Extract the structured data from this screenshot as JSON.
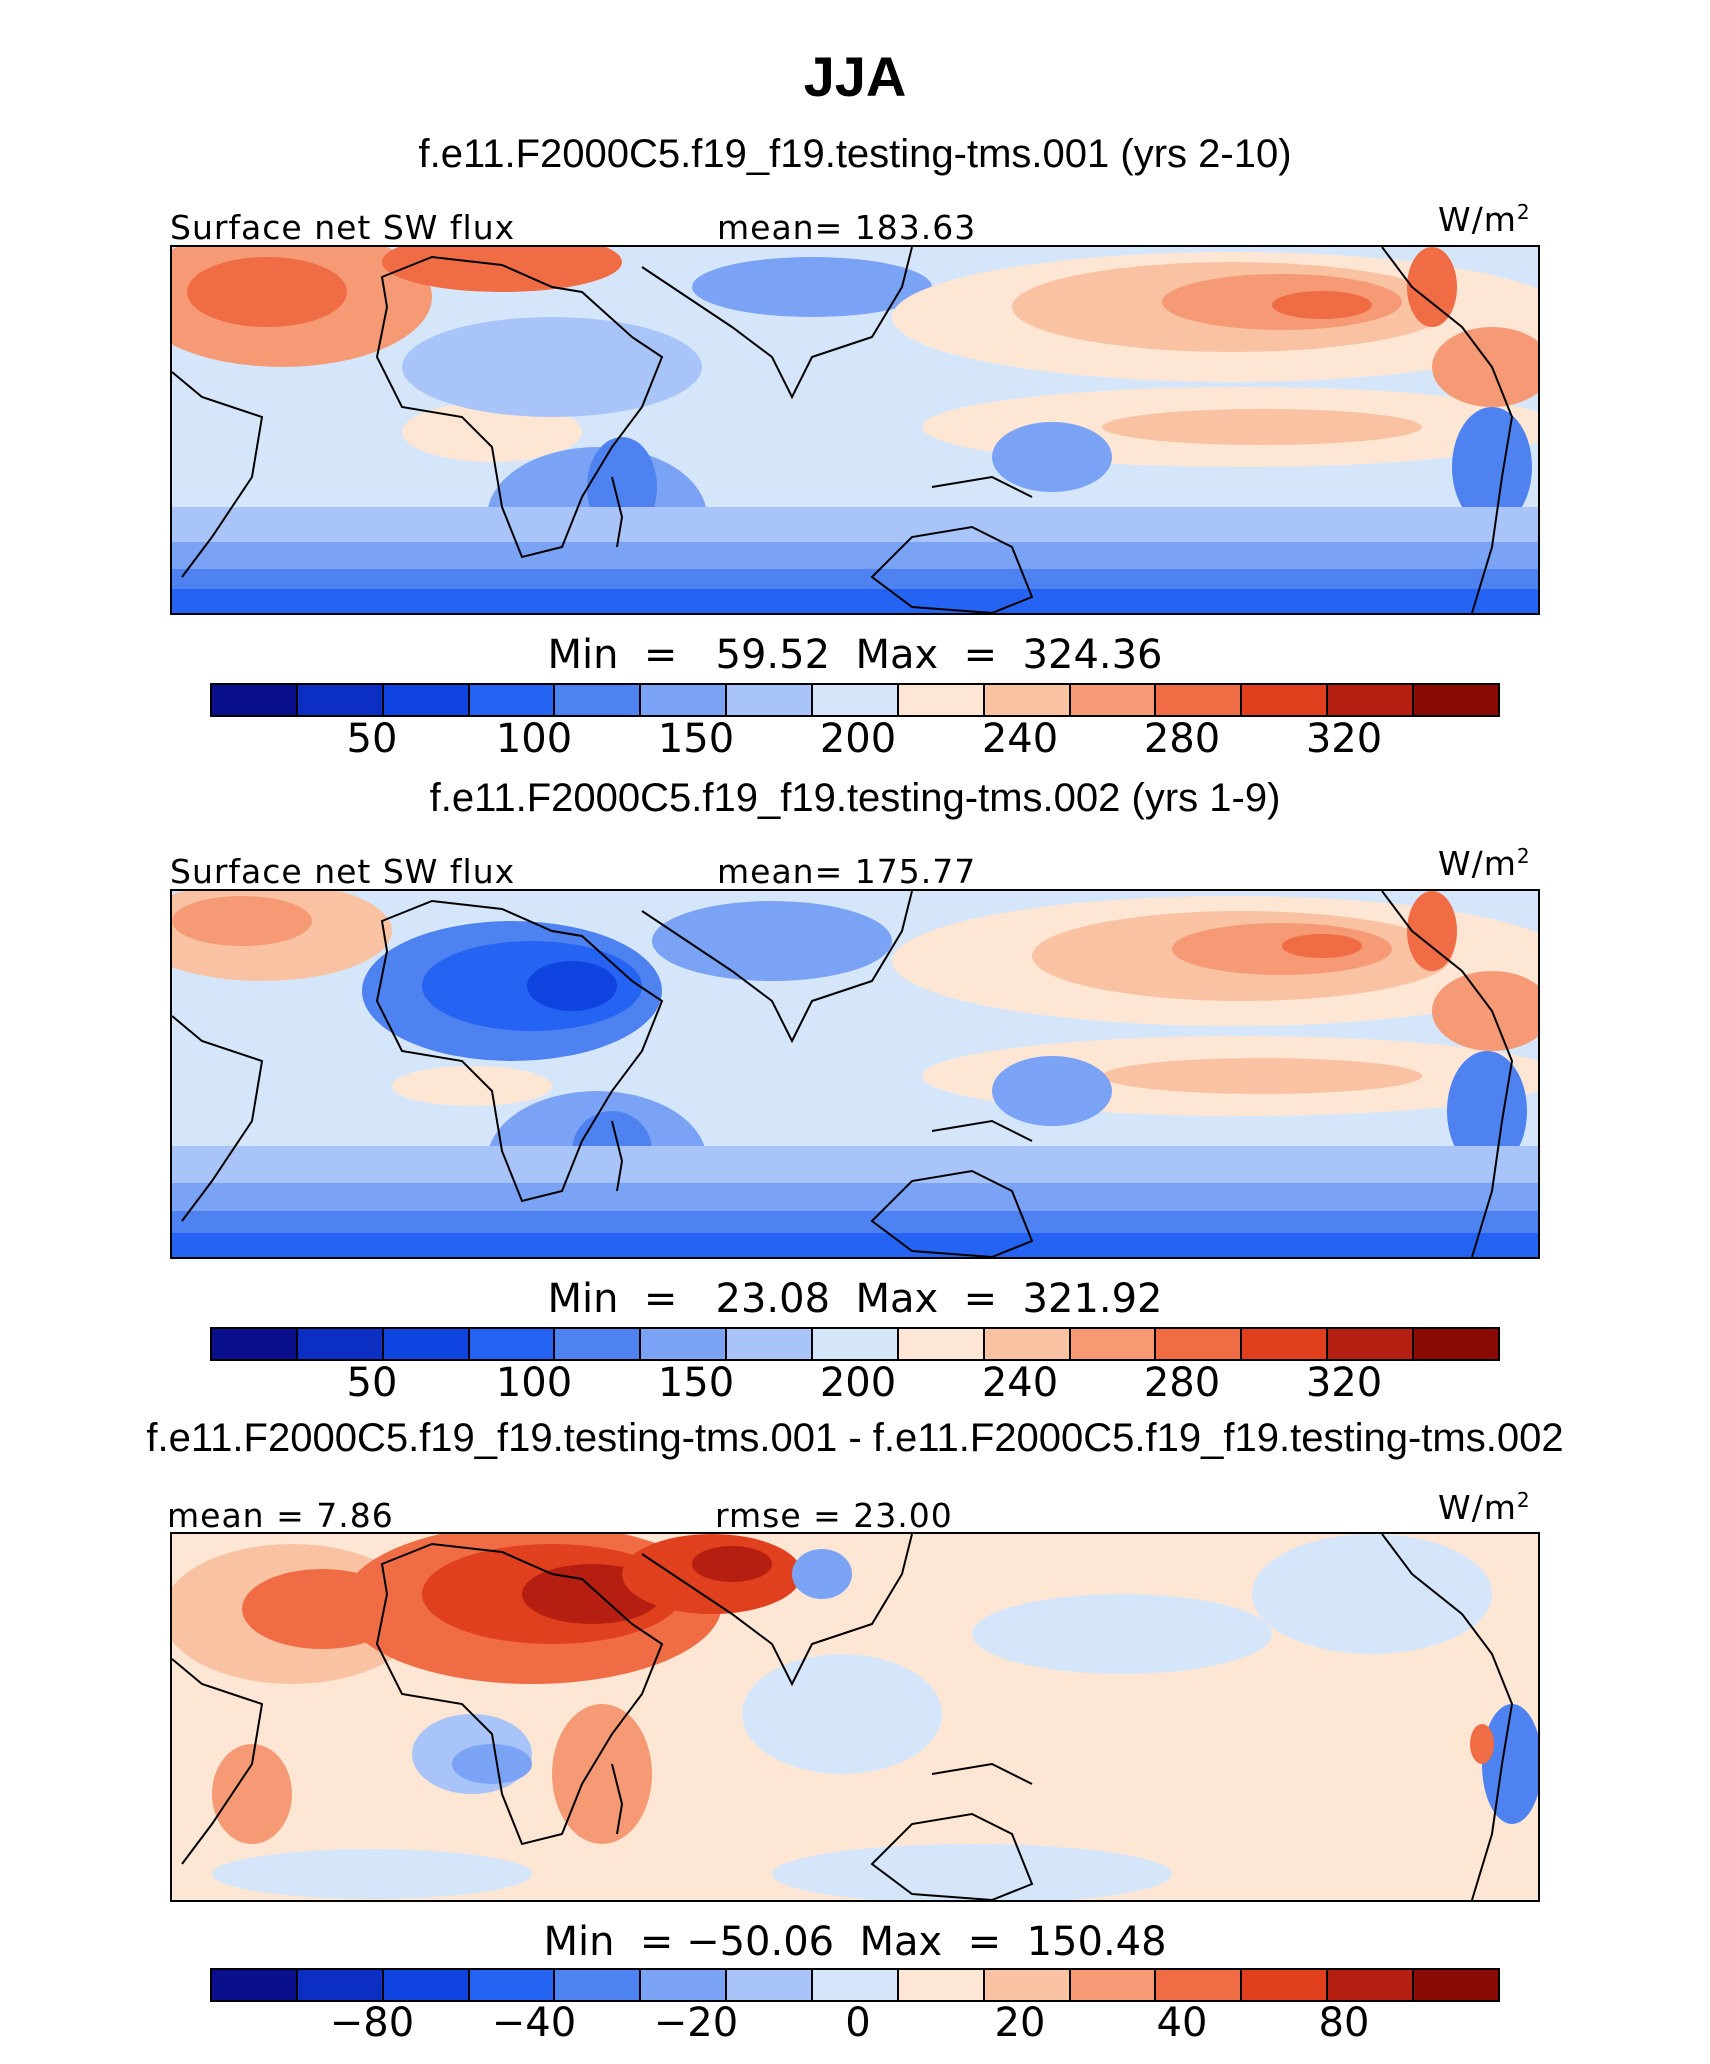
{
  "title": "JJA",
  "colors": {
    "ramp": [
      "#0a0f8c",
      "#0a2fc2",
      "#0f44e0",
      "#2563f2",
      "#4d82f0",
      "#7aa2f5",
      "#a9c4f8",
      "#d6e6fa",
      "#fde6d4",
      "#f9c3a3",
      "#f59a74",
      "#f06c45",
      "#e0401e",
      "#b51e10",
      "#8a0a05"
    ],
    "land_outline": "#000000"
  },
  "panels": [
    {
      "case_title": "f.e11.F2000C5.f19_f19.testing-tms.001 (yrs 2-10)",
      "left_label": "Surface net SW flux",
      "center_label": "mean=  183.63",
      "units": "W/m",
      "units_sup": "2",
      "minmax": "Min  =   59.52  Max  =  324.36",
      "ticks": [
        "50",
        "100",
        "150",
        "200",
        "240",
        "280",
        "320"
      ]
    },
    {
      "case_title": "f.e11.F2000C5.f19_f19.testing-tms.002 (yrs 1-9)",
      "left_label": "Surface net SW flux",
      "center_label": "mean=  175.77",
      "units": "W/m",
      "units_sup": "2",
      "minmax": "Min  =   23.08  Max  =  321.92",
      "ticks": [
        "50",
        "100",
        "150",
        "200",
        "240",
        "280",
        "320"
      ]
    },
    {
      "case_title": "f.e11.F2000C5.f19_f19.testing-tms.001 - f.e11.F2000C5.f19_f19.testing-tms.002",
      "left_label": "mean =    7.86",
      "center_label": "rmse =   23.00",
      "units": "W/m",
      "units_sup": "2",
      "minmax": "Min  = −50.06  Max  =  150.48",
      "ticks": [
        "−80",
        "−40",
        "−20",
        "0",
        "20",
        "40",
        "80"
      ]
    }
  ],
  "chart_data": [
    {
      "type": "heatmap",
      "title": "f.e11.F2000C5.f19_f19.testing-tms.001 (yrs 2-10)",
      "variable": "Surface net SW flux",
      "units": "W/m2",
      "mean": 183.63,
      "min": 59.52,
      "max": 324.36,
      "colorbar_levels": [
        25,
        50,
        75,
        100,
        125,
        150,
        175,
        200,
        220,
        240,
        260,
        280,
        300,
        320
      ],
      "colorbar_tick_labels": [
        "50",
        "100",
        "150",
        "200",
        "240",
        "280",
        "320"
      ]
    },
    {
      "type": "heatmap",
      "title": "f.e11.F2000C5.f19_f19.testing-tms.002 (yrs 1-9)",
      "variable": "Surface net SW flux",
      "units": "W/m2",
      "mean": 175.77,
      "min": 23.08,
      "max": 321.92,
      "colorbar_levels": [
        25,
        50,
        75,
        100,
        125,
        150,
        175,
        200,
        220,
        240,
        260,
        280,
        300,
        320
      ],
      "colorbar_tick_labels": [
        "50",
        "100",
        "150",
        "200",
        "240",
        "280",
        "320"
      ]
    },
    {
      "type": "heatmap",
      "title": "f.e11.F2000C5.f19_f19.testing-tms.001 - f.e11.F2000C5.f19_f19.testing-tms.002",
      "units": "W/m2",
      "mean": 7.86,
      "rmse": 23.0,
      "min": -50.06,
      "max": 150.48,
      "colorbar_levels": [
        -100,
        -80,
        -60,
        -40,
        -30,
        -20,
        -10,
        0,
        10,
        20,
        30,
        40,
        60,
        80
      ],
      "colorbar_tick_labels": [
        "−80",
        "−40",
        "−20",
        "0",
        "20",
        "40",
        "80"
      ]
    }
  ]
}
